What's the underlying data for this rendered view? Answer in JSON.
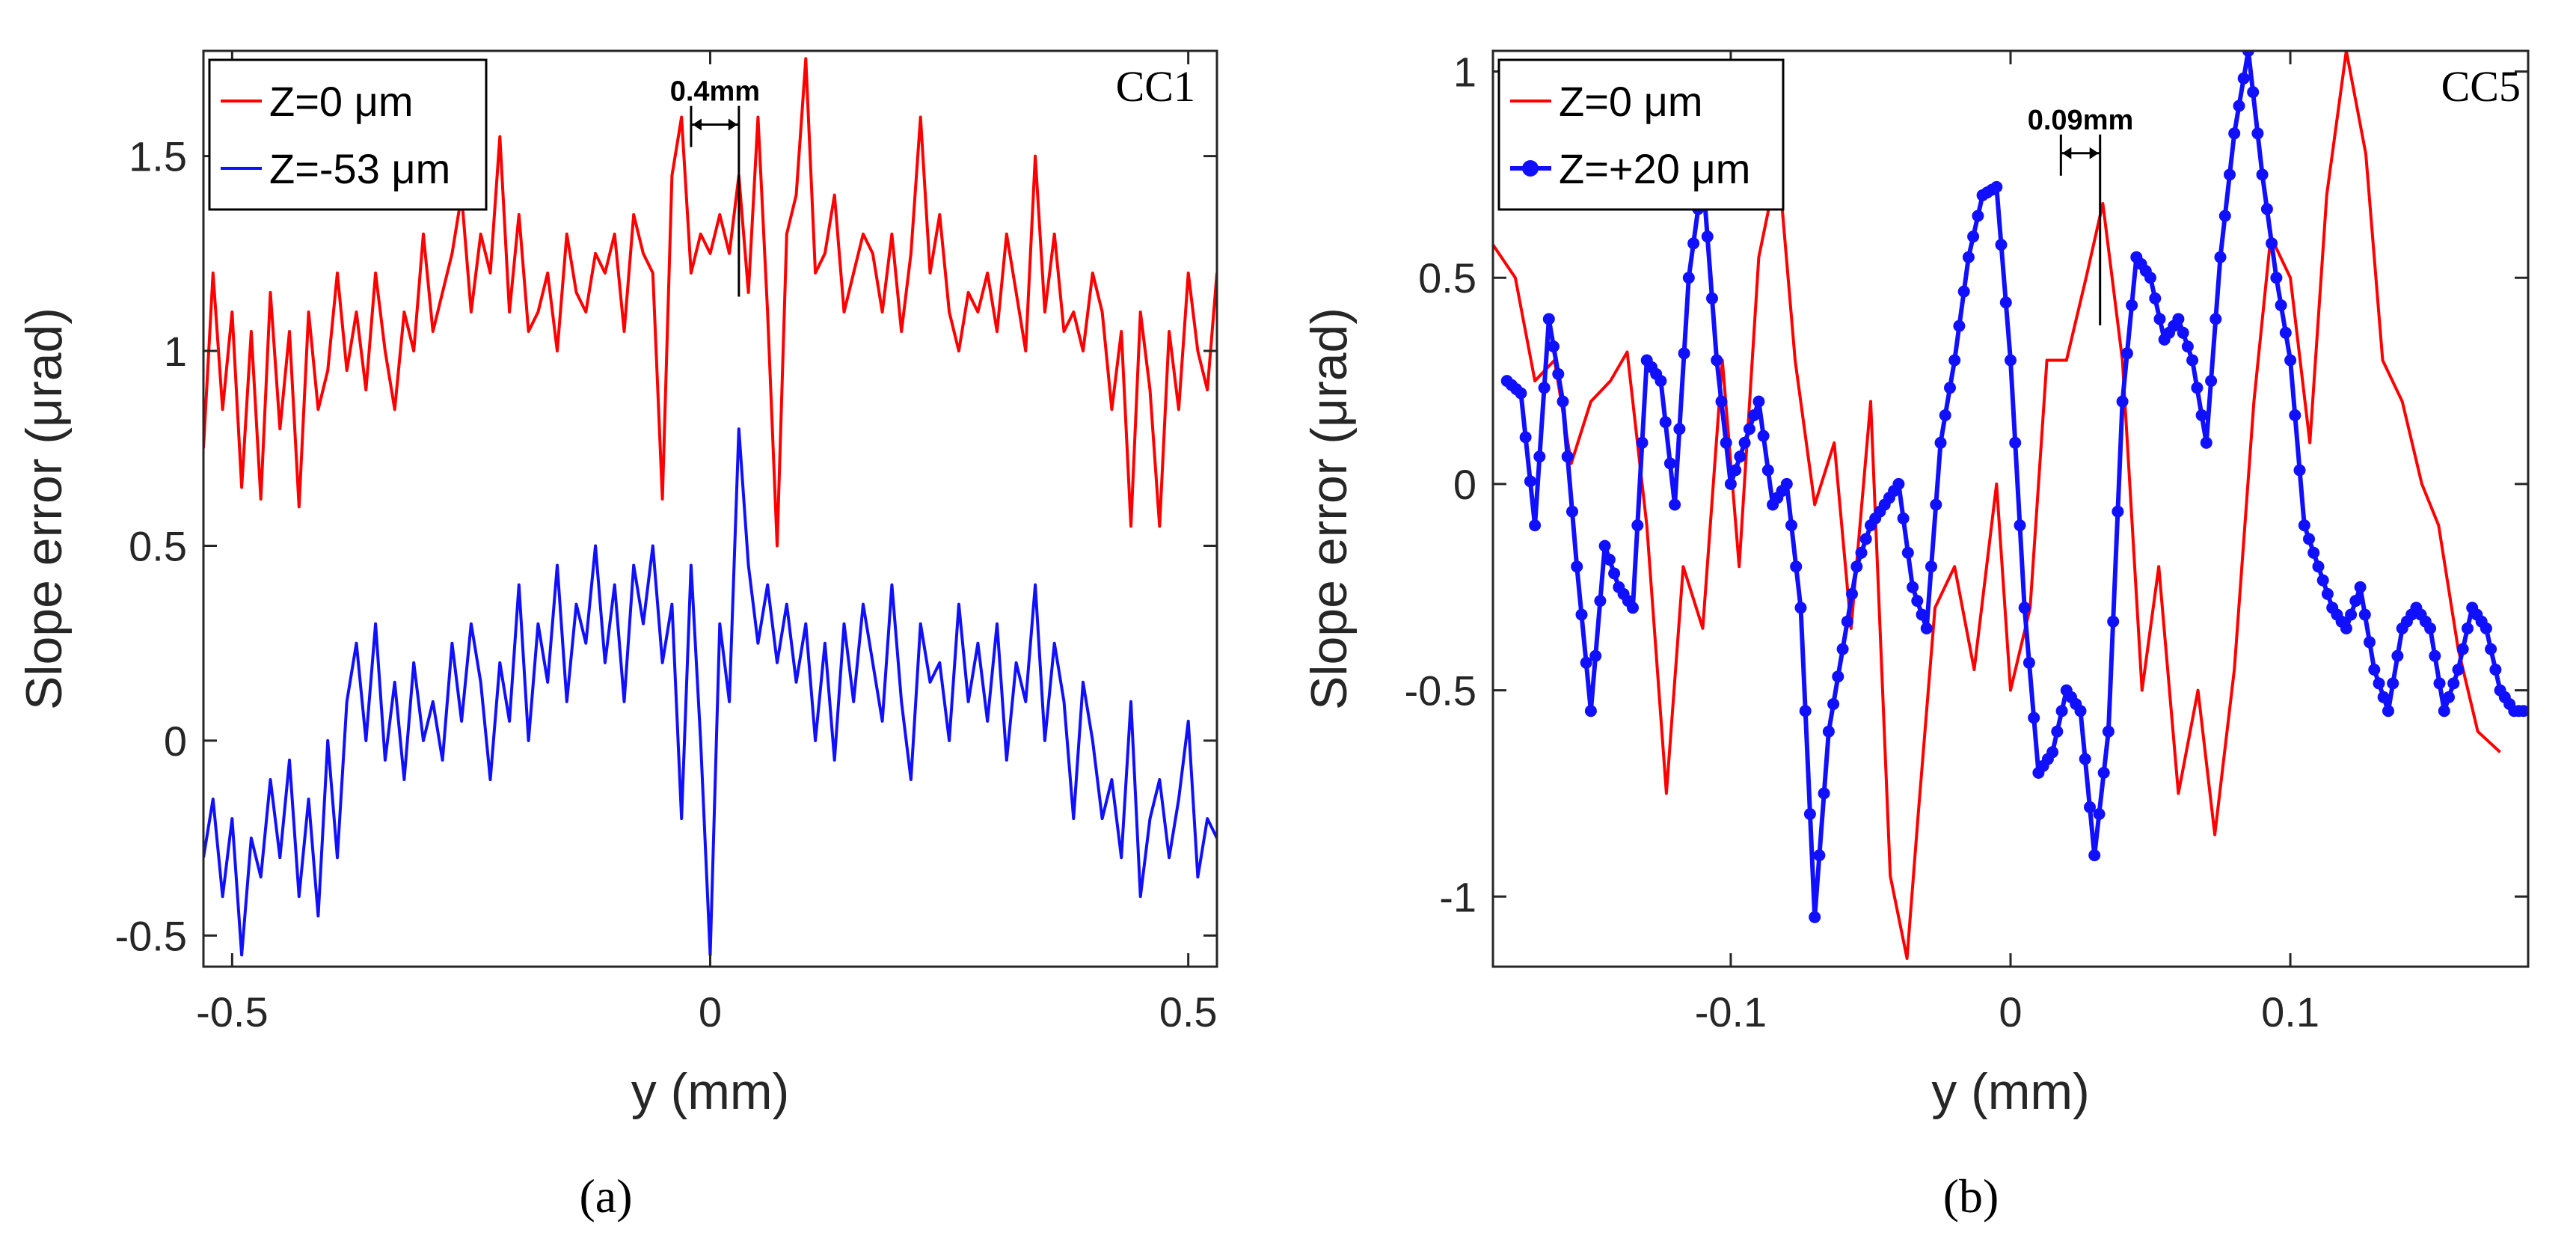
{
  "colors": {
    "red": "#ff0000",
    "blue": "#1010ff",
    "axis": "#262626"
  },
  "chart_data": [
    {
      "type": "line",
      "panel": "a",
      "caption": "(a)",
      "title": "",
      "tag": "CC1",
      "xlabel": "y (mm)",
      "ylabel": "Slope error (μrad)",
      "xlim": [
        -0.53,
        0.53
      ],
      "ylim": [
        -0.58,
        1.77
      ],
      "xticks": [
        -0.5,
        0,
        0.5
      ],
      "xtick_labels": [
        "-0.5",
        "0",
        "0.5"
      ],
      "yticks": [
        -0.5,
        0,
        0.5,
        1,
        1.5
      ],
      "ytick_labels": [
        "-0.5",
        "0",
        "0.5",
        "1",
        "1.5"
      ],
      "legend_position": "top-left",
      "annotation": {
        "text": "0.4mm",
        "x_from": -0.02,
        "x_to": 0.03,
        "y": 1.6
      },
      "series": [
        {
          "name": "Z=0 μm",
          "color": "#ff0000",
          "markers": false,
          "x": [
            -0.53,
            -0.52,
            -0.51,
            -0.5,
            -0.49,
            -0.48,
            -0.47,
            -0.46,
            -0.45,
            -0.44,
            -0.43,
            -0.42,
            -0.41,
            -0.4,
            -0.39,
            -0.38,
            -0.37,
            -0.36,
            -0.35,
            -0.34,
            -0.33,
            -0.32,
            -0.31,
            -0.3,
            -0.29,
            -0.28,
            -0.27,
            -0.26,
            -0.25,
            -0.24,
            -0.23,
            -0.22,
            -0.21,
            -0.2,
            -0.19,
            -0.18,
            -0.17,
            -0.16,
            -0.15,
            -0.14,
            -0.13,
            -0.12,
            -0.11,
            -0.1,
            -0.09,
            -0.08,
            -0.07,
            -0.06,
            -0.05,
            -0.04,
            -0.03,
            -0.02,
            -0.01,
            0,
            0.01,
            0.02,
            0.03,
            0.04,
            0.05,
            0.06,
            0.07,
            0.08,
            0.09,
            0.1,
            0.11,
            0.12,
            0.13,
            0.14,
            0.15,
            0.16,
            0.17,
            0.18,
            0.19,
            0.2,
            0.21,
            0.22,
            0.23,
            0.24,
            0.25,
            0.26,
            0.27,
            0.28,
            0.29,
            0.3,
            0.31,
            0.32,
            0.33,
            0.34,
            0.35,
            0.36,
            0.37,
            0.38,
            0.39,
            0.4,
            0.41,
            0.42,
            0.43,
            0.44,
            0.45,
            0.46,
            0.47,
            0.48,
            0.49,
            0.5,
            0.51,
            0.52,
            0.53
          ],
          "y": [
            0.75,
            1.2,
            0.85,
            1.1,
            0.65,
            1.05,
            0.62,
            1.15,
            0.8,
            1.05,
            0.6,
            1.1,
            0.85,
            0.95,
            1.2,
            0.95,
            1.1,
            0.9,
            1.2,
            1.0,
            0.85,
            1.1,
            1.0,
            1.3,
            1.05,
            1.15,
            1.25,
            1.4,
            1.1,
            1.3,
            1.2,
            1.55,
            1.1,
            1.35,
            1.05,
            1.1,
            1.2,
            1.0,
            1.3,
            1.15,
            1.1,
            1.25,
            1.2,
            1.3,
            1.05,
            1.35,
            1.25,
            1.2,
            0.62,
            1.45,
            1.6,
            1.2,
            1.3,
            1.25,
            1.35,
            1.25,
            1.45,
            1.15,
            1.6,
            1.1,
            0.5,
            1.3,
            1.4,
            1.75,
            1.2,
            1.25,
            1.4,
            1.1,
            1.2,
            1.3,
            1.25,
            1.1,
            1.3,
            1.05,
            1.25,
            1.6,
            1.2,
            1.35,
            1.1,
            1.0,
            1.15,
            1.1,
            1.2,
            1.05,
            1.3,
            1.15,
            1.0,
            1.5,
            1.1,
            1.3,
            1.05,
            1.1,
            1.0,
            1.2,
            1.1,
            0.85,
            1.05,
            0.55,
            1.1,
            0.9,
            0.55,
            1.05,
            0.85,
            1.2,
            1.0,
            0.9,
            1.2
          ],
          "style": "line"
        },
        {
          "name": "Z=-53 μm",
          "color": "#1010ff",
          "markers": false,
          "x": [
            -0.53,
            -0.52,
            -0.51,
            -0.5,
            -0.49,
            -0.48,
            -0.47,
            -0.46,
            -0.45,
            -0.44,
            -0.43,
            -0.42,
            -0.41,
            -0.4,
            -0.39,
            -0.38,
            -0.37,
            -0.36,
            -0.35,
            -0.34,
            -0.33,
            -0.32,
            -0.31,
            -0.3,
            -0.29,
            -0.28,
            -0.27,
            -0.26,
            -0.25,
            -0.24,
            -0.23,
            -0.22,
            -0.21,
            -0.2,
            -0.19,
            -0.18,
            -0.17,
            -0.16,
            -0.15,
            -0.14,
            -0.13,
            -0.12,
            -0.11,
            -0.1,
            -0.09,
            -0.08,
            -0.07,
            -0.06,
            -0.05,
            -0.04,
            -0.03,
            -0.02,
            -0.01,
            0,
            0.01,
            0.02,
            0.03,
            0.04,
            0.05,
            0.06,
            0.07,
            0.08,
            0.09,
            0.1,
            0.11,
            0.12,
            0.13,
            0.14,
            0.15,
            0.16,
            0.17,
            0.18,
            0.19,
            0.2,
            0.21,
            0.22,
            0.23,
            0.24,
            0.25,
            0.26,
            0.27,
            0.28,
            0.29,
            0.3,
            0.31,
            0.32,
            0.33,
            0.34,
            0.35,
            0.36,
            0.37,
            0.38,
            0.39,
            0.4,
            0.41,
            0.42,
            0.43,
            0.44,
            0.45,
            0.46,
            0.47,
            0.48,
            0.49,
            0.5,
            0.51,
            0.52,
            0.53
          ],
          "y": [
            -0.3,
            -0.15,
            -0.4,
            -0.2,
            -0.55,
            -0.25,
            -0.35,
            -0.1,
            -0.3,
            -0.05,
            -0.4,
            -0.15,
            -0.45,
            0.0,
            -0.3,
            0.1,
            0.25,
            0.0,
            0.3,
            -0.05,
            0.15,
            -0.1,
            0.2,
            0.0,
            0.1,
            -0.05,
            0.25,
            0.05,
            0.3,
            0.15,
            -0.1,
            0.2,
            0.05,
            0.4,
            0.0,
            0.3,
            0.15,
            0.45,
            0.1,
            0.35,
            0.25,
            0.5,
            0.2,
            0.4,
            0.1,
            0.45,
            0.3,
            0.5,
            0.2,
            0.35,
            -0.2,
            0.45,
            0.0,
            -0.55,
            0.3,
            0.1,
            0.8,
            0.45,
            0.25,
            0.4,
            0.2,
            0.35,
            0.15,
            0.3,
            0.0,
            0.25,
            -0.05,
            0.3,
            0.1,
            0.35,
            0.2,
            0.05,
            0.4,
            0.1,
            -0.1,
            0.3,
            0.15,
            0.2,
            0.0,
            0.35,
            0.1,
            0.25,
            0.05,
            0.3,
            -0.05,
            0.2,
            0.1,
            0.4,
            0.0,
            0.25,
            0.1,
            -0.2,
            0.15,
            0.0,
            -0.2,
            -0.1,
            -0.3,
            0.1,
            -0.4,
            -0.2,
            -0.1,
            -0.3,
            -0.15,
            0.05,
            -0.35,
            -0.2,
            -0.25
          ],
          "style": "line"
        }
      ]
    },
    {
      "type": "line",
      "panel": "b",
      "caption": "(b)",
      "title": "",
      "tag": "CC5",
      "xlabel": "y (mm)",
      "ylabel": "Slope error (μrad)",
      "xlim": [
        -0.185,
        0.185
      ],
      "ylim": [
        -1.17,
        1.05
      ],
      "xticks": [
        -0.1,
        0,
        0.1
      ],
      "xtick_labels": [
        "-0.1",
        "0",
        "0.1"
      ],
      "yticks": [
        -1,
        -0.5,
        0,
        0.5,
        1
      ],
      "ytick_labels": [
        "-1",
        "-0.5",
        "0",
        "0.5",
        "1"
      ],
      "legend_position": "top-left",
      "annotation": {
        "text": "0.09mm",
        "x_from": 0.018,
        "x_to": 0.032,
        "y": 0.82
      },
      "series": [
        {
          "name": "Z=0 μm",
          "color": "#ff0000",
          "markers": false,
          "x": [
            -0.185,
            -0.177,
            -0.17,
            -0.163,
            -0.157,
            -0.15,
            -0.143,
            -0.137,
            -0.13,
            -0.123,
            -0.117,
            -0.11,
            -0.103,
            -0.097,
            -0.09,
            -0.083,
            -0.077,
            -0.07,
            -0.063,
            -0.057,
            -0.05,
            -0.043,
            -0.037,
            -0.033,
            -0.027,
            -0.02,
            -0.013,
            -0.005,
            0.0,
            0.007,
            0.013,
            0.02,
            0.027,
            0.033,
            0.04,
            0.047,
            0.053,
            0.06,
            0.067,
            0.073,
            0.08,
            0.087,
            0.093,
            0.1,
            0.107,
            0.113,
            0.12,
            0.127,
            0.133,
            0.14,
            0.147,
            0.153,
            0.16,
            0.167,
            0.175
          ],
          "y": [
            0.58,
            0.5,
            0.25,
            0.3,
            0.05,
            0.2,
            0.25,
            0.32,
            -0.1,
            -0.75,
            -0.2,
            -0.35,
            0.3,
            -0.2,
            0.55,
            0.78,
            0.3,
            -0.05,
            0.1,
            -0.35,
            0.2,
            -0.95,
            -1.15,
            -0.8,
            -0.3,
            -0.2,
            -0.45,
            0.0,
            -0.5,
            -0.3,
            0.3,
            0.3,
            0.5,
            0.68,
            0.3,
            -0.5,
            -0.2,
            -0.75,
            -0.5,
            -0.85,
            -0.45,
            0.2,
            0.6,
            0.5,
            0.1,
            0.7,
            1.05,
            0.8,
            0.3,
            0.2,
            0.0,
            -0.1,
            -0.4,
            -0.6,
            -0.65
          ],
          "style": "line"
        },
        {
          "name": "Z=+20 μm",
          "color": "#1010ff",
          "markers": true,
          "x": [
            -0.18,
            -0.175,
            -0.17,
            -0.165,
            -0.16,
            -0.155,
            -0.15,
            -0.145,
            -0.14,
            -0.135,
            -0.13,
            -0.125,
            -0.12,
            -0.115,
            -0.11,
            -0.105,
            -0.1,
            -0.095,
            -0.09,
            -0.085,
            -0.08,
            -0.075,
            -0.07,
            -0.065,
            -0.06,
            -0.055,
            -0.05,
            -0.045,
            -0.04,
            -0.035,
            -0.03,
            -0.025,
            -0.02,
            -0.015,
            -0.01,
            -0.005,
            0.0,
            0.005,
            0.01,
            0.015,
            0.02,
            0.025,
            0.03,
            0.035,
            0.04,
            0.045,
            0.05,
            0.055,
            0.06,
            0.065,
            0.07,
            0.075,
            0.08,
            0.085,
            0.09,
            0.095,
            0.1,
            0.105,
            0.11,
            0.115,
            0.12,
            0.125,
            0.13,
            0.135,
            0.14,
            0.145,
            0.15,
            0.155,
            0.16,
            0.165,
            0.17,
            0.175,
            0.18,
            0.185
          ],
          "y": [
            0.25,
            0.22,
            -0.1,
            0.4,
            0.2,
            -0.2,
            -0.55,
            -0.15,
            -0.25,
            -0.3,
            0.3,
            0.25,
            -0.05,
            0.5,
            0.75,
            0.3,
            0.0,
            0.1,
            0.2,
            -0.05,
            0.0,
            -0.3,
            -1.05,
            -0.6,
            -0.4,
            -0.2,
            -0.1,
            -0.05,
            0.0,
            -0.25,
            -0.35,
            0.1,
            0.3,
            0.55,
            0.7,
            0.72,
            0.3,
            -0.3,
            -0.7,
            -0.65,
            -0.5,
            -0.55,
            -0.9,
            -0.6,
            0.2,
            0.55,
            0.5,
            0.35,
            0.4,
            0.3,
            0.1,
            0.55,
            0.85,
            1.05,
            0.75,
            0.5,
            0.3,
            -0.1,
            -0.2,
            -0.3,
            -0.35,
            -0.25,
            -0.45,
            -0.55,
            -0.35,
            -0.3,
            -0.35,
            -0.55,
            -0.45,
            -0.3,
            -0.35,
            -0.5,
            -0.55,
            -0.55
          ],
          "style": "line+markers"
        }
      ]
    }
  ]
}
